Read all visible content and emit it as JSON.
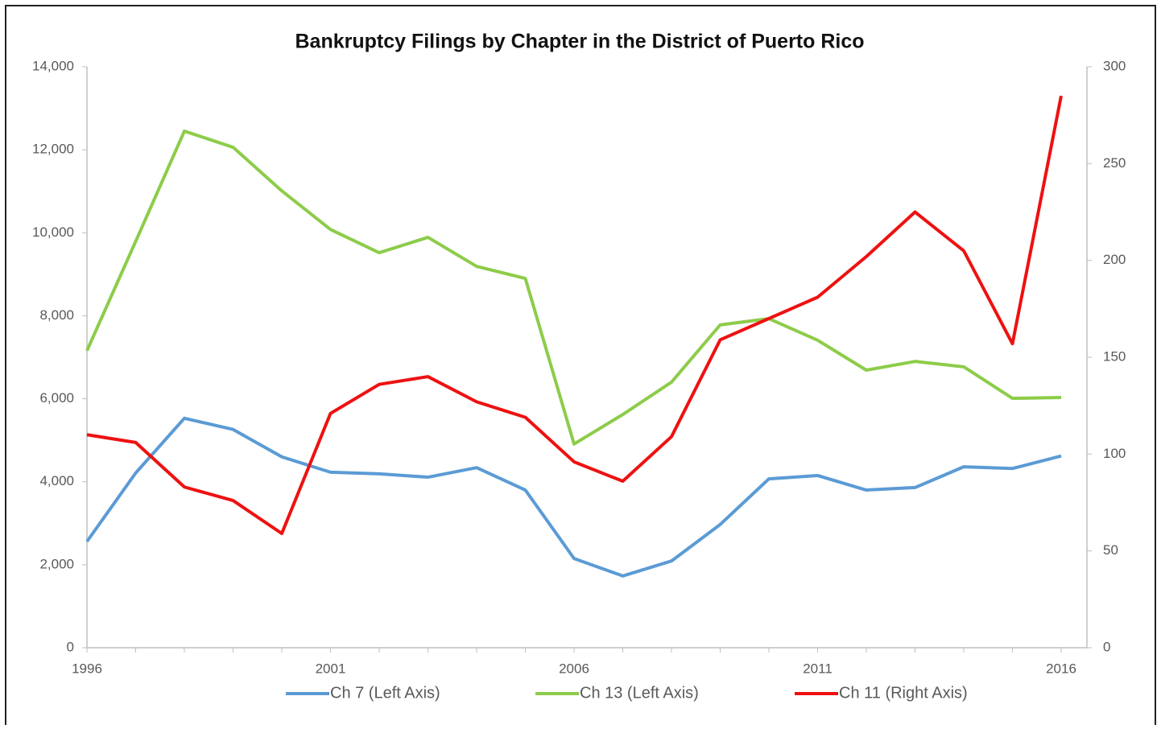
{
  "chart_data": {
    "type": "line",
    "title": "Bankruptcy Filings by Chapter in the District of Puerto Rico",
    "x": [
      1996,
      1997,
      1998,
      1999,
      2000,
      2001,
      2002,
      2003,
      2004,
      2005,
      2006,
      2007,
      2008,
      2009,
      2010,
      2011,
      2012,
      2013,
      2014,
      2015,
      2016
    ],
    "xlim": [
      1996,
      2016
    ],
    "xticks": [
      1996,
      2001,
      2006,
      2011,
      2016
    ],
    "ylim": [
      0,
      14000
    ],
    "yticks": [
      0,
      {
        "value": 2000,
        "label": "2,000"
      },
      {
        "value": 4000,
        "label": "4,000"
      },
      {
        "value": 6000,
        "label": "6,000"
      },
      {
        "value": 8000,
        "label": "8,000"
      },
      {
        "value": 10000,
        "label": "10,000"
      },
      {
        "value": 12000,
        "label": "12,000"
      },
      {
        "value": 14000,
        "label": "14,000"
      }
    ],
    "y2lim": [
      0,
      300
    ],
    "y2ticks": [
      0,
      50,
      100,
      150,
      200,
      250,
      300
    ],
    "series": [
      {
        "name": "Ch 7 (Left Axis)",
        "color": "#5b9bd5",
        "values": [
          2560,
          4210,
          5530,
          5260,
          4600,
          4230,
          4190,
          4110,
          4340,
          3800,
          2150,
          1730,
          2090,
          2970,
          4070,
          4150,
          3800,
          3860,
          4360,
          4320,
          4620
        ]
      },
      {
        "name": "Ch 13 (Left Axis)",
        "color": "#8dcc4a",
        "values": [
          7160,
          9790,
          12450,
          12060,
          11010,
          10080,
          9520,
          9890,
          9190,
          8900,
          4910,
          5620,
          6400,
          7780,
          7930,
          7410,
          6690,
          6900,
          6770,
          6010,
          6030
        ]
      },
      {
        "name": "Ch 11 (Right Axis)",
        "color": "#ee1111",
        "axis": "y2",
        "values": [
          110,
          106,
          83,
          76,
          59,
          121,
          136,
          140,
          127,
          119,
          96,
          86,
          109,
          159,
          170,
          181,
          202,
          225,
          205,
          157,
          285
        ]
      }
    ]
  }
}
